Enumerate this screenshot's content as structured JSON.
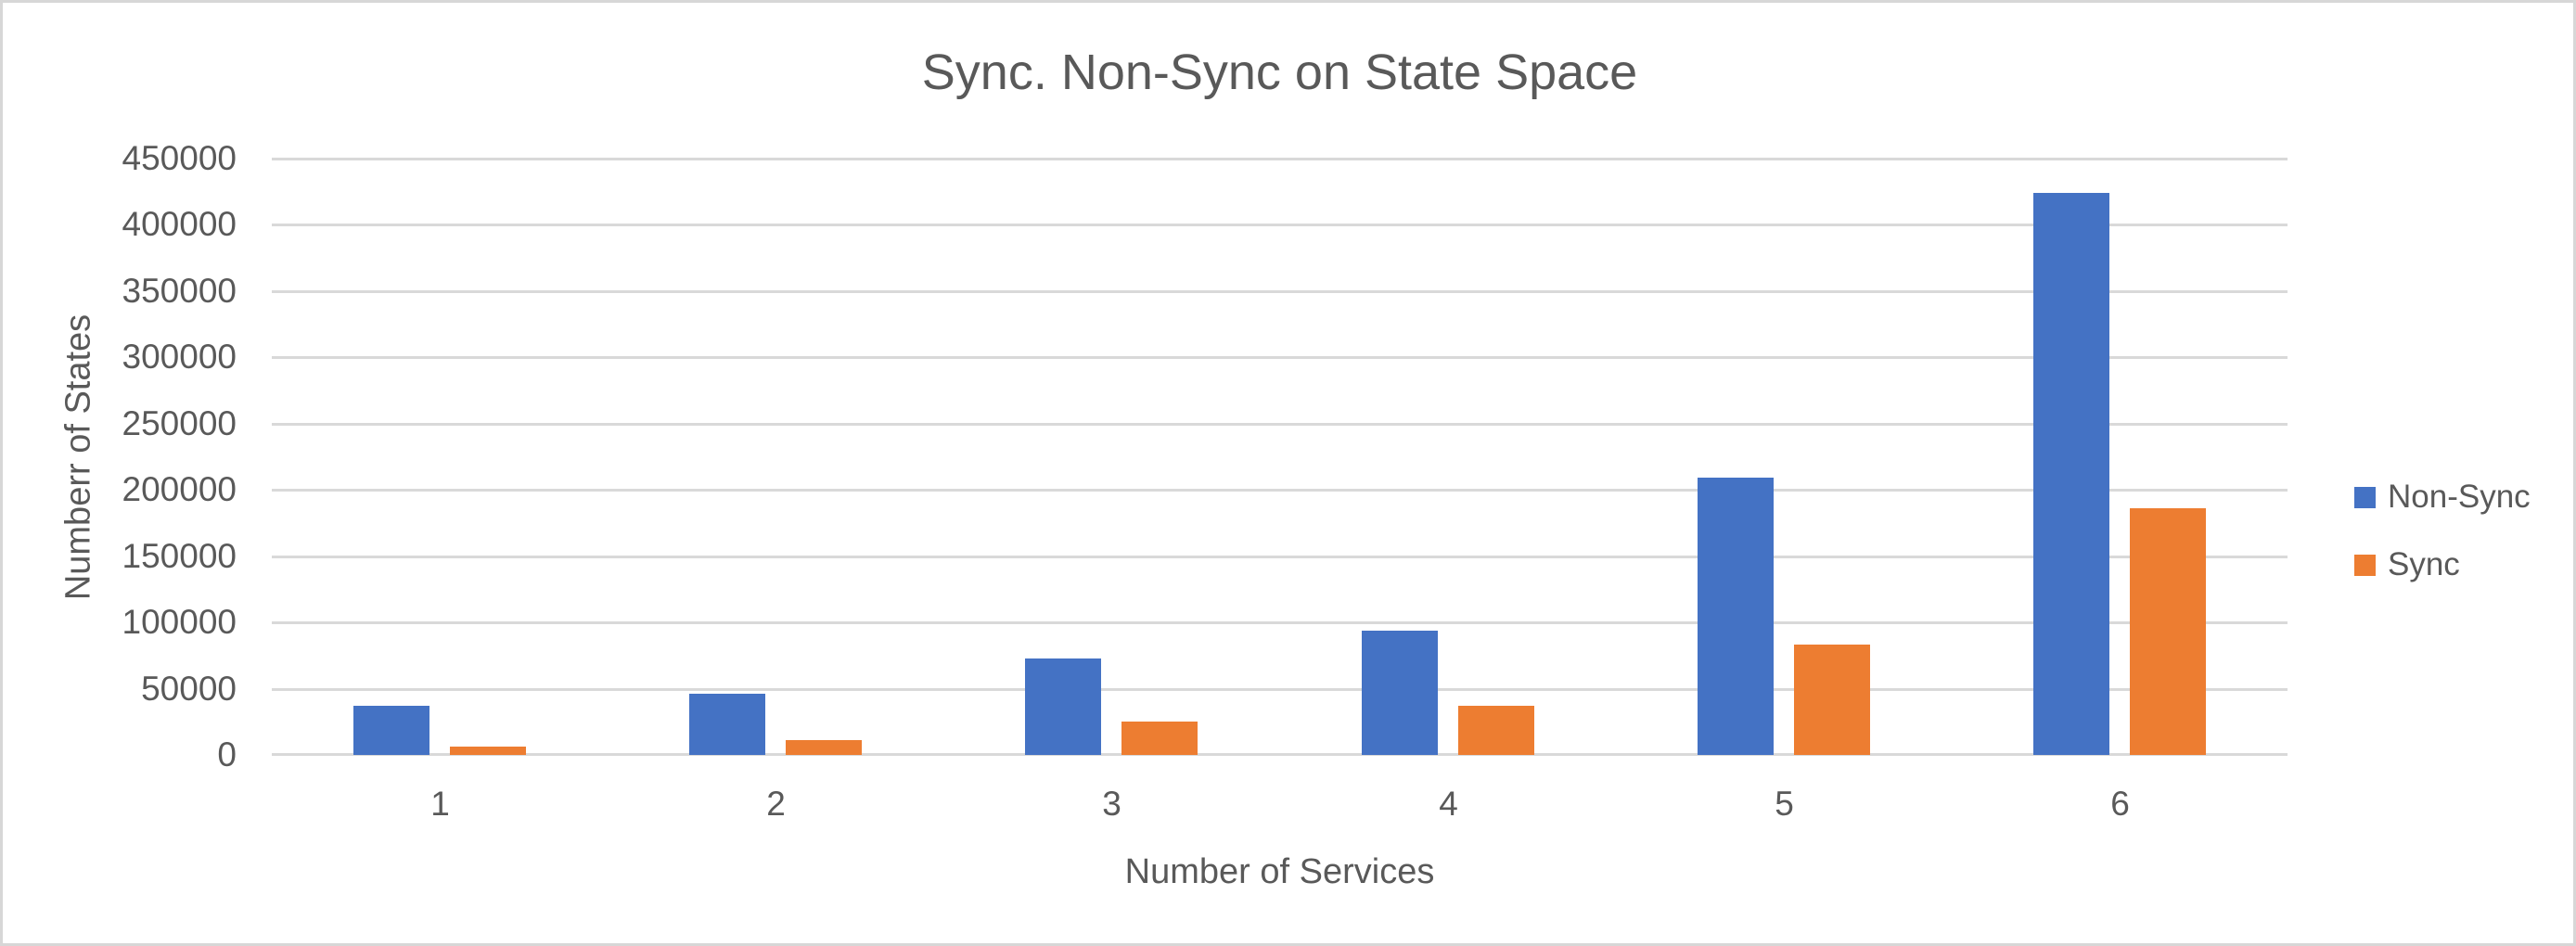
{
  "window": {
    "background": "#FFFFFF",
    "frame_border_color": "#D7D7D7"
  },
  "chart_data": {
    "type": "bar",
    "title": "Sync. Non-Sync on State Space",
    "xlabel": "Number of Services",
    "ylabel": "Numberr of States",
    "categories": [
      "1",
      "2",
      "3",
      "4",
      "5",
      "6"
    ],
    "series": [
      {
        "name": "Non-Sync",
        "color": "#4472C4",
        "values": [
          37000,
          46000,
          72500,
          93500,
          209000,
          424000
        ]
      },
      {
        "name": "Sync",
        "color": "#ED7D31",
        "values": [
          6000,
          11500,
          25500,
          37000,
          83500,
          186500
        ]
      }
    ],
    "ylim": [
      0,
      450000
    ],
    "ytick_interval": 50000,
    "ytick_labels": [
      "0",
      "50000",
      "100000",
      "150000",
      "200000",
      "250000",
      "300000",
      "350000",
      "400000",
      "450000"
    ],
    "grid": true,
    "grid_color": "#D9D9D9",
    "text_color": "#595959",
    "legend_position": "right"
  }
}
